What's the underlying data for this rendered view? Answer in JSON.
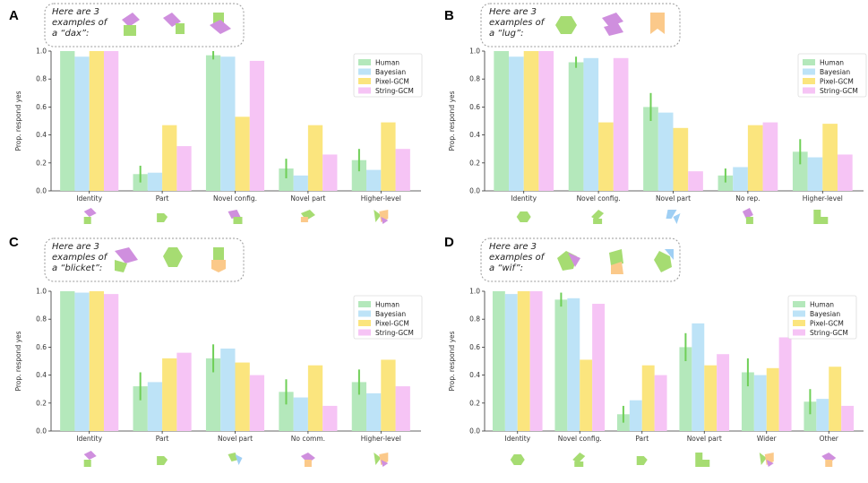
{
  "colors": {
    "human": "#b4e8bb",
    "bayesian": "#bde3f7",
    "pixel": "#fbe57e",
    "string": "#f6c4f5",
    "errorbar": "#6fcf57",
    "purple": "#cf8fde",
    "green": "#a6dc72",
    "orange": "#fbc98a",
    "blue": "#9fcff4"
  },
  "legend_labels": [
    "Human",
    "Bayesian",
    "Pixel-GCM",
    "String-GCM"
  ],
  "chart_data": [
    {
      "panel": "A",
      "type": "bar",
      "intro_lines": [
        "Here are 3",
        "examples of",
        "a “dax”:"
      ],
      "ylabel": "Prop. respond yes",
      "ylim": [
        0,
        1.0
      ],
      "yticks": [
        "0.0",
        "0.2",
        "0.4",
        "0.6",
        "0.8",
        "1.0"
      ],
      "categories": [
        "Identity",
        "Part",
        "Novel config.",
        "Novel part",
        "Higher-level"
      ],
      "series": [
        {
          "name": "Human",
          "values": [
            1.0,
            0.12,
            0.97,
            0.16,
            0.22
          ],
          "err": [
            0,
            0.06,
            0.03,
            0.07,
            0.08
          ]
        },
        {
          "name": "Bayesian",
          "values": [
            0.96,
            0.13,
            0.96,
            0.11,
            0.15
          ]
        },
        {
          "name": "Pixel-GCM",
          "values": [
            1.0,
            0.47,
            0.53,
            0.47,
            0.49
          ]
        },
        {
          "name": "String-GCM",
          "values": [
            1.0,
            0.32,
            0.93,
            0.26,
            0.3
          ]
        }
      ]
    },
    {
      "panel": "B",
      "type": "bar",
      "intro_lines": [
        "Here are 3",
        "examples of",
        "a “lug”:"
      ],
      "ylabel": "Prop. respond yes",
      "ylim": [
        0,
        1.0
      ],
      "yticks": [
        "0.0",
        "0.2",
        "0.4",
        "0.6",
        "0.8",
        "1.0"
      ],
      "categories": [
        "Identity",
        "Novel config.",
        "Novel part",
        "No rep.",
        "Higher-level"
      ],
      "series": [
        {
          "name": "Human",
          "values": [
            1.0,
            0.92,
            0.6,
            0.11,
            0.28
          ],
          "err": [
            0,
            0.04,
            0.1,
            0.05,
            0.09
          ]
        },
        {
          "name": "Bayesian",
          "values": [
            0.96,
            0.95,
            0.56,
            0.17,
            0.24
          ]
        },
        {
          "name": "Pixel-GCM",
          "values": [
            1.0,
            0.49,
            0.45,
            0.47,
            0.48
          ]
        },
        {
          "name": "String-GCM",
          "values": [
            1.0,
            0.95,
            0.14,
            0.49,
            0.26
          ]
        }
      ]
    },
    {
      "panel": "C",
      "type": "bar",
      "intro_lines": [
        "Here are 3",
        "examples of",
        "a “blicket”:"
      ],
      "ylabel": "Prop. respond yes",
      "ylim": [
        0,
        1.0
      ],
      "yticks": [
        "0.0",
        "0.2",
        "0.4",
        "0.6",
        "0.8",
        "1.0"
      ],
      "categories": [
        "Identity",
        "Part",
        "Novel part",
        "No comm.",
        "Higher-level"
      ],
      "series": [
        {
          "name": "Human",
          "values": [
            1.0,
            0.32,
            0.52,
            0.28,
            0.35
          ],
          "err": [
            0,
            0.1,
            0.1,
            0.09,
            0.09
          ]
        },
        {
          "name": "Bayesian",
          "values": [
            0.99,
            0.35,
            0.59,
            0.24,
            0.27
          ]
        },
        {
          "name": "Pixel-GCM",
          "values": [
            1.0,
            0.52,
            0.49,
            0.47,
            0.51
          ]
        },
        {
          "name": "String-GCM",
          "values": [
            0.98,
            0.56,
            0.4,
            0.18,
            0.32
          ]
        }
      ]
    },
    {
      "panel": "D",
      "type": "bar",
      "intro_lines": [
        "Here are 3",
        "examples of",
        "a “wif”:"
      ],
      "ylabel": "Prop. respond yes",
      "ylim": [
        0,
        1.0
      ],
      "yticks": [
        "0.0",
        "0.2",
        "0.4",
        "0.6",
        "0.8",
        "1.0"
      ],
      "categories": [
        "Identity",
        "Novel config.",
        "Part",
        "Novel part",
        "Wider",
        "Other"
      ],
      "series": [
        {
          "name": "Human",
          "values": [
            1.0,
            0.94,
            0.12,
            0.6,
            0.42,
            0.21
          ],
          "err": [
            0,
            0.05,
            0.06,
            0.1,
            0.1,
            0.09
          ]
        },
        {
          "name": "Bayesian",
          "values": [
            0.98,
            0.95,
            0.22,
            0.77,
            0.4,
            0.23
          ]
        },
        {
          "name": "Pixel-GCM",
          "values": [
            1.0,
            0.51,
            0.47,
            0.47,
            0.45,
            0.46
          ]
        },
        {
          "name": "String-GCM",
          "values": [
            1.0,
            0.91,
            0.4,
            0.55,
            0.67,
            0.18
          ]
        }
      ]
    }
  ]
}
